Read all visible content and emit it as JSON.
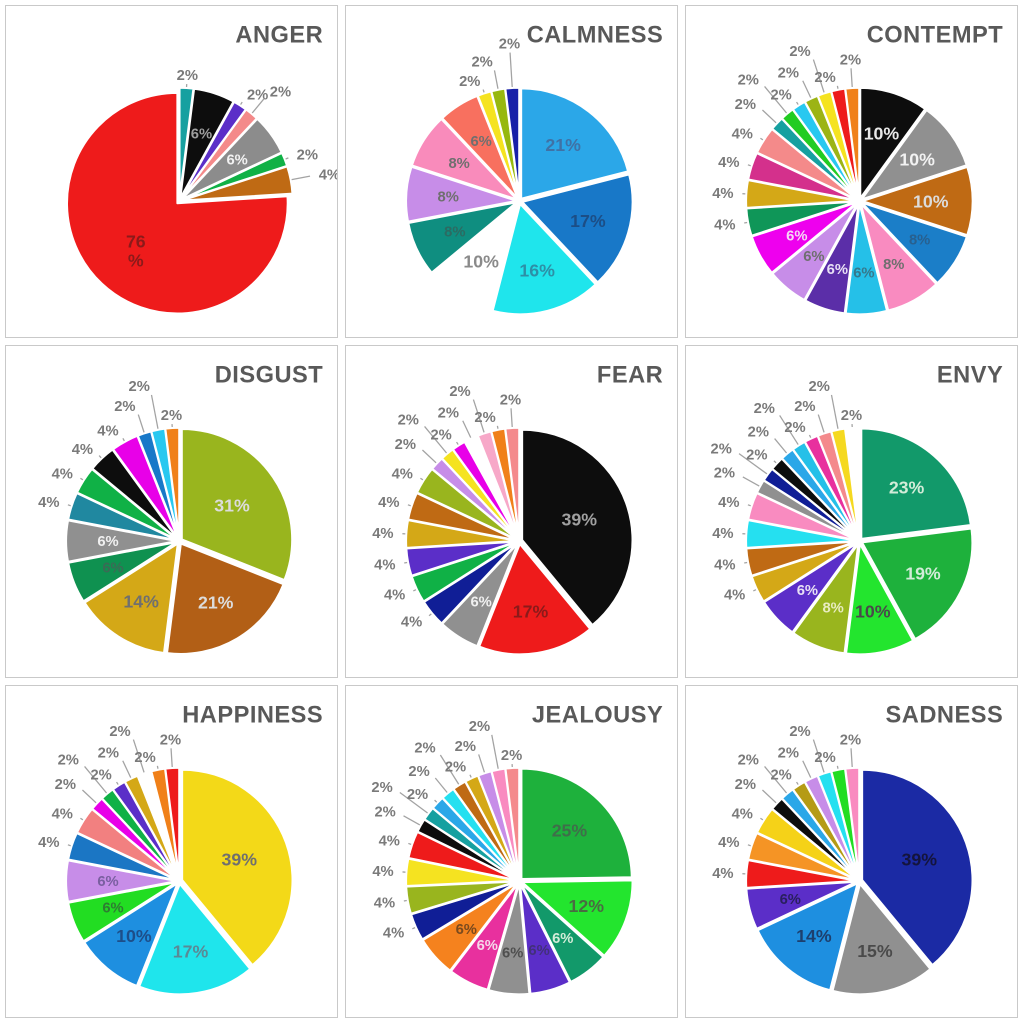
{
  "page": {
    "background": "#ffffff",
    "panel_border": "#c9c9c9",
    "outside_label_color": "#7a7a7a",
    "title_color": "#595959"
  },
  "chart_data": [
    {
      "type": "pie",
      "title": "ANGER",
      "legend_position": "none",
      "labels_outside_for_small": true,
      "slices": [
        {
          "label": "2%",
          "value": 2,
          "color": "#16A0A0",
          "name": "teal"
        },
        {
          "label": "6%",
          "value": 6,
          "color": "#0D0D0D",
          "name": "black",
          "lc": "#9e9e9e"
        },
        {
          "label": "2%",
          "value": 2,
          "color": "#5B2EC8",
          "name": "purple"
        },
        {
          "label": "2%",
          "value": 2,
          "color": "#F48A8A",
          "name": "salmon-pink"
        },
        {
          "label": "6%",
          "value": 6,
          "color": "#8C8C8C",
          "name": "gray",
          "lc": "#f2f2f2"
        },
        {
          "label": "2%",
          "value": 2,
          "color": "#10B146",
          "name": "green"
        },
        {
          "label": "4%",
          "value": 4,
          "color": "#BF6A14",
          "name": "brown"
        },
        {
          "label": "76 %",
          "value": 76,
          "color": "#EE1B1B",
          "name": "red",
          "lc": "#8B1A1A"
        }
      ]
    },
    {
      "type": "pie",
      "title": "CALMNESS",
      "slices": [
        {
          "label": "21%",
          "value": 21,
          "color": "#2BA7E8",
          "name": "sky-blue",
          "lc": "#3f72a6"
        },
        {
          "label": "17%",
          "value": 17,
          "color": "#1878C8",
          "name": "blue",
          "lc": "#1c4e86"
        },
        {
          "label": "16%",
          "value": 16,
          "color": "#1FE5EC",
          "name": "cyan",
          "lc": "#2d8fa6"
        },
        {
          "label": "10%",
          "value": 10,
          "color": "#FFFFFF",
          "name": "white",
          "lc": "#8a8a8a"
        },
        {
          "label": "8%",
          "value": 8,
          "color": "#0F8E80",
          "name": "teal-green",
          "lc": "#2c6b62"
        },
        {
          "label": "8%",
          "value": 8,
          "color": "#C78DE8",
          "name": "violet",
          "lc": "#6f6f6f"
        },
        {
          "label": "8%",
          "value": 8,
          "color": "#F98BBB",
          "name": "pink",
          "lc": "#6f6f6f"
        },
        {
          "label": "6%",
          "value": 6,
          "color": "#F8705F",
          "name": "coral",
          "lc": "#6f6f6f"
        },
        {
          "label": "2%",
          "value": 2,
          "color": "#F5E320",
          "name": "yellow"
        },
        {
          "label": "2%",
          "value": 2,
          "color": "#97B80E",
          "name": "yellow-green"
        },
        {
          "label": "2%",
          "value": 2,
          "color": "#1820A8",
          "name": "navy"
        }
      ]
    },
    {
      "type": "pie",
      "title": "CONTEMPT",
      "slices": [
        {
          "label": "10%",
          "value": 10,
          "color": "#0D0D0D",
          "name": "black",
          "lc": "#e8e8e8"
        },
        {
          "label": "10%",
          "value": 10,
          "color": "#909090",
          "name": "gray",
          "lc": "#f2f2f2"
        },
        {
          "label": "10%",
          "value": 10,
          "color": "#BF6A14",
          "name": "brown",
          "lc": "#dcdcdc"
        },
        {
          "label": "8%",
          "value": 8,
          "color": "#1B7EC8",
          "name": "steel-blue",
          "lc": "#28608f"
        },
        {
          "label": "8%",
          "value": 8,
          "color": "#F98BC0",
          "name": "pink",
          "lc": "#6f6f6f"
        },
        {
          "label": "6%",
          "value": 6,
          "color": "#25C0E8",
          "name": "sky-cyan",
          "lc": "#35788c"
        },
        {
          "label": "6%",
          "value": 6,
          "color": "#5B2EA8",
          "name": "dark-purple",
          "lc": "#e8e0f5"
        },
        {
          "label": "6%",
          "value": 6,
          "color": "#C78DE8",
          "name": "violet",
          "lc": "#6f6f6f"
        },
        {
          "label": "6%",
          "value": 6,
          "color": "#EE00EE",
          "name": "magenta",
          "lc": "#f5d8f5"
        },
        {
          "label": "4%",
          "value": 4,
          "color": "#0F9658",
          "name": "sea-green"
        },
        {
          "label": "4%",
          "value": 4,
          "color": "#D4A817",
          "name": "gold"
        },
        {
          "label": "4%",
          "value": 4,
          "color": "#D4308C",
          "name": "deep-pink"
        },
        {
          "label": "4%",
          "value": 4,
          "color": "#F48A8A",
          "name": "salmon-pink"
        },
        {
          "label": "2%",
          "value": 2,
          "color": "#16A0A0",
          "name": "teal"
        },
        {
          "label": "2%",
          "value": 2,
          "color": "#22CC22",
          "name": "green"
        },
        {
          "label": "2%",
          "value": 2,
          "color": "#28C8F0",
          "name": "cyan"
        },
        {
          "label": "2%",
          "value": 2,
          "color": "#9CB414",
          "name": "yellow-green"
        },
        {
          "label": "2%",
          "value": 2,
          "color": "#F5E320",
          "name": "yellow"
        },
        {
          "label": "2%",
          "value": 2,
          "color": "#EE1B1B",
          "name": "red"
        },
        {
          "label": "2%",
          "value": 2,
          "color": "#F08019",
          "name": "orange"
        }
      ]
    },
    {
      "type": "pie",
      "title": "DISGUST",
      "slices": [
        {
          "label": "31%",
          "value": 31,
          "color": "#99B51E",
          "name": "olive-green",
          "lc": "#dcdcdc"
        },
        {
          "label": "21%",
          "value": 21,
          "color": "#B25F16",
          "name": "brown",
          "lc": "#dcdcdc"
        },
        {
          "label": "14%",
          "value": 14,
          "color": "#D4A817",
          "name": "gold",
          "lc": "#6f6f6f"
        },
        {
          "label": "6%",
          "value": 6,
          "color": "#0F9150",
          "name": "sea-green",
          "lc": "#3a6b55"
        },
        {
          "label": "6%",
          "value": 6,
          "color": "#909090",
          "name": "gray",
          "lc": "#f0f0f0"
        },
        {
          "label": "4%",
          "value": 4,
          "color": "#2088A0",
          "name": "teal-blue"
        },
        {
          "label": "4%",
          "value": 4,
          "color": "#10B146",
          "name": "green"
        },
        {
          "label": "4%",
          "value": 4,
          "color": "#0D0D0D",
          "name": "black"
        },
        {
          "label": "4%",
          "value": 4,
          "color": "#E800E8",
          "name": "magenta"
        },
        {
          "label": "2%",
          "value": 2,
          "color": "#1878C8",
          "name": "blue"
        },
        {
          "label": "2%",
          "value": 2,
          "color": "#28C8F0",
          "name": "cyan"
        },
        {
          "label": "2%",
          "value": 2,
          "color": "#F08019",
          "name": "orange"
        }
      ]
    },
    {
      "type": "pie",
      "title": "FEAR",
      "slices": [
        {
          "label": "39%",
          "value": 39,
          "color": "#0D0D0D",
          "name": "black",
          "lc": "#a0a0a0"
        },
        {
          "label": "17%",
          "value": 17,
          "color": "#EE1B1B",
          "name": "red",
          "lc": "#8B1A1A"
        },
        {
          "label": "6%",
          "value": 6,
          "color": "#909090",
          "name": "gray",
          "lc": "#f0f0f0"
        },
        {
          "label": "4%",
          "value": 4,
          "color": "#101E96",
          "name": "navy"
        },
        {
          "label": "4%",
          "value": 4,
          "color": "#10B146",
          "name": "green"
        },
        {
          "label": "4%",
          "value": 4,
          "color": "#5B2EC8",
          "name": "purple"
        },
        {
          "label": "4%",
          "value": 4,
          "color": "#D4A817",
          "name": "gold"
        },
        {
          "label": "4%",
          "value": 4,
          "color": "#BF6A14",
          "name": "brown"
        },
        {
          "label": "4%",
          "value": 4,
          "color": "#99B51E",
          "name": "yellow-green"
        },
        {
          "label": "2%",
          "value": 2,
          "color": "#C78DE8",
          "name": "plum"
        },
        {
          "label": "2%",
          "value": 2,
          "color": "#F5E320",
          "name": "yellow"
        },
        {
          "label": "2%",
          "value": 2,
          "color": "#E800E8",
          "name": "magenta"
        },
        {
          "label": "2%",
          "value": 2,
          "color": "#FFFFFF",
          "name": "white"
        },
        {
          "label": "2%",
          "value": 2,
          "color": "#F7A8C8",
          "name": "pale-pink"
        },
        {
          "label": "2%",
          "value": 2,
          "color": "#F08019",
          "name": "orange"
        },
        {
          "label": "2%",
          "value": 2,
          "color": "#F48A8C",
          "name": "salmon-pink"
        }
      ]
    },
    {
      "type": "pie",
      "title": "ENVY",
      "slices": [
        {
          "label": "23%",
          "value": 23,
          "color": "#12996A",
          "name": "sea-green",
          "lc": "#d2ecd8"
        },
        {
          "label": "19%",
          "value": 19,
          "color": "#1EB13C",
          "name": "green",
          "lc": "#d2ecd8"
        },
        {
          "label": "10%",
          "value": 10,
          "color": "#23E52E",
          "name": "lime",
          "lc": "#4a4a4a"
        },
        {
          "label": "8%",
          "value": 8,
          "color": "#99B51E",
          "name": "olive-green",
          "lc": "#e8ecc0"
        },
        {
          "label": "6%",
          "value": 6,
          "color": "#5B2EC8",
          "name": "dark-purple",
          "lc": "#e8e0f5"
        },
        {
          "label": "4%",
          "value": 4,
          "color": "#D4A817",
          "name": "gold"
        },
        {
          "label": "4%",
          "value": 4,
          "color": "#BF6A14",
          "name": "brown"
        },
        {
          "label": "4%",
          "value": 4,
          "color": "#25E0F0",
          "name": "cyan"
        },
        {
          "label": "4%",
          "value": 4,
          "color": "#F98BC0",
          "name": "pink"
        },
        {
          "label": "2%",
          "value": 2,
          "color": "#909090",
          "name": "gray"
        },
        {
          "label": "2%",
          "value": 2,
          "color": "#101E96",
          "name": "navy"
        },
        {
          "label": "2%",
          "value": 2,
          "color": "#0D0D0D",
          "name": "black"
        },
        {
          "label": "2%",
          "value": 2,
          "color": "#2BA7E8",
          "name": "sky-blue"
        },
        {
          "label": "2%",
          "value": 2,
          "color": "#25C0E8",
          "name": "light-cyan"
        },
        {
          "label": "2%",
          "value": 2,
          "color": "#E8309E",
          "name": "deep-pink"
        },
        {
          "label": "2%",
          "value": 2,
          "color": "#F48A8C",
          "name": "salmon-pink"
        },
        {
          "label": "2%",
          "value": 2,
          "color": "#F5D920",
          "name": "yellow"
        },
        {
          "label": "2%",
          "value": 2,
          "color": "#FFFFFF",
          "name": "white"
        }
      ]
    },
    {
      "type": "pie",
      "title": "HAPPINESS",
      "slices": [
        {
          "label": "39%",
          "value": 39,
          "color": "#F3D918",
          "name": "yellow",
          "lc": "#6f6f6f"
        },
        {
          "label": "17%",
          "value": 17,
          "color": "#1FE5EC",
          "name": "cyan",
          "lc": "#5a8a96"
        },
        {
          "label": "10%",
          "value": 10,
          "color": "#1E8FE0",
          "name": "dodger-blue",
          "lc": "#1d4e89"
        },
        {
          "label": "6%",
          "value": 6,
          "color": "#22DD22",
          "name": "green",
          "lc": "#2e7d32"
        },
        {
          "label": "6%",
          "value": 6,
          "color": "#C78DE8",
          "name": "plum",
          "lc": "#7a5fa0"
        },
        {
          "label": "4%",
          "value": 4,
          "color": "#1B76C4",
          "name": "steel-blue"
        },
        {
          "label": "4%",
          "value": 4,
          "color": "#F28080",
          "name": "salmon-pink"
        },
        {
          "label": "2%",
          "value": 2,
          "color": "#E800E8",
          "name": "magenta"
        },
        {
          "label": "2%",
          "value": 2,
          "color": "#10B146",
          "name": "medium-green"
        },
        {
          "label": "2%",
          "value": 2,
          "color": "#5B2EC8",
          "name": "dark-purple"
        },
        {
          "label": "2%",
          "value": 2,
          "color": "#D4A817",
          "name": "gold"
        },
        {
          "label": "2%",
          "value": 2,
          "color": "#FFFFFF",
          "name": "white"
        },
        {
          "label": "2%",
          "value": 2,
          "color": "#F08019",
          "name": "orange"
        },
        {
          "label": "2%",
          "value": 2,
          "color": "#EE1B1B",
          "name": "red"
        }
      ]
    },
    {
      "type": "pie",
      "title": "JEALOUSY",
      "slices": [
        {
          "label": "25%",
          "value": 25,
          "color": "#1EB13C",
          "name": "green",
          "lc": "#3f6e4a"
        },
        {
          "label": "12%",
          "value": 12,
          "color": "#23E52E",
          "name": "lime",
          "lc": "#4a6b42"
        },
        {
          "label": "6%",
          "value": 6,
          "color": "#12996A",
          "name": "sea-green",
          "lc": "#d2ecd8"
        },
        {
          "label": "6%",
          "value": 6,
          "color": "#5B2EC8",
          "name": "dark-purple",
          "lc": "#42307a"
        },
        {
          "label": "6%",
          "value": 6,
          "color": "#909090",
          "name": "gray",
          "lc": "#4f4f4f"
        },
        {
          "label": "6%",
          "value": 6,
          "color": "#E8309E",
          "name": "deep-pink",
          "lc": "#f5d8ea"
        },
        {
          "label": "6%",
          "value": 6,
          "color": "#F5821E",
          "name": "orange",
          "lc": "#7a4a1e"
        },
        {
          "label": "4%",
          "value": 4,
          "color": "#101E96",
          "name": "navy"
        },
        {
          "label": "4%",
          "value": 4,
          "color": "#99B51E",
          "name": "olive-green"
        },
        {
          "label": "4%",
          "value": 4,
          "color": "#F5E320",
          "name": "yellow"
        },
        {
          "label": "4%",
          "value": 4,
          "color": "#EE1B1B",
          "name": "red"
        },
        {
          "label": "2%",
          "value": 2,
          "color": "#0D0D0D",
          "name": "black"
        },
        {
          "label": "2%",
          "value": 2,
          "color": "#16A0A0",
          "name": "teal"
        },
        {
          "label": "2%",
          "value": 2,
          "color": "#2BA7E8",
          "name": "sky-blue"
        },
        {
          "label": "2%",
          "value": 2,
          "color": "#25E0F0",
          "name": "cyan"
        },
        {
          "label": "2%",
          "value": 2,
          "color": "#BF6A14",
          "name": "brown"
        },
        {
          "label": "2%",
          "value": 2,
          "color": "#D4A817",
          "name": "gold"
        },
        {
          "label": "2%",
          "value": 2,
          "color": "#C78DE8",
          "name": "plum"
        },
        {
          "label": "2%",
          "value": 2,
          "color": "#F98BC0",
          "name": "pink"
        },
        {
          "label": "2%",
          "value": 2,
          "color": "#F48A8C",
          "name": "salmon-pink"
        }
      ]
    },
    {
      "type": "pie",
      "title": "SADNESS",
      "slices": [
        {
          "label": "39%",
          "value": 39,
          "color": "#1B2AA4",
          "name": "navy",
          "lc": "#14143c"
        },
        {
          "label": "15%",
          "value": 15,
          "color": "#909090",
          "name": "gray",
          "lc": "#4a4a4a"
        },
        {
          "label": "14%",
          "value": 14,
          "color": "#1E8FE0",
          "name": "dodger-blue",
          "lc": "#1d3f6e"
        },
        {
          "label": "6%",
          "value": 6,
          "color": "#5B2EC8",
          "name": "dark-purple",
          "lc": "#2a1f5e"
        },
        {
          "label": "4%",
          "value": 4,
          "color": "#EE1B1B",
          "name": "red"
        },
        {
          "label": "4%",
          "value": 4,
          "color": "#F59425",
          "name": "orange"
        },
        {
          "label": "4%",
          "value": 4,
          "color": "#F5D218",
          "name": "yellow"
        },
        {
          "label": "2%",
          "value": 2,
          "color": "#0D0D0D",
          "name": "black"
        },
        {
          "label": "2%",
          "value": 2,
          "color": "#2BA7E8",
          "name": "sky-blue"
        },
        {
          "label": "2%",
          "value": 2,
          "color": "#B59B15",
          "name": "dark-gold"
        },
        {
          "label": "2%",
          "value": 2,
          "color": "#C78DE8",
          "name": "plum"
        },
        {
          "label": "2%",
          "value": 2,
          "color": "#25E0F0",
          "name": "cyan"
        },
        {
          "label": "2%",
          "value": 2,
          "color": "#22DD22",
          "name": "green"
        },
        {
          "label": "2%",
          "value": 2,
          "color": "#F98BC0",
          "name": "pink"
        }
      ]
    }
  ]
}
